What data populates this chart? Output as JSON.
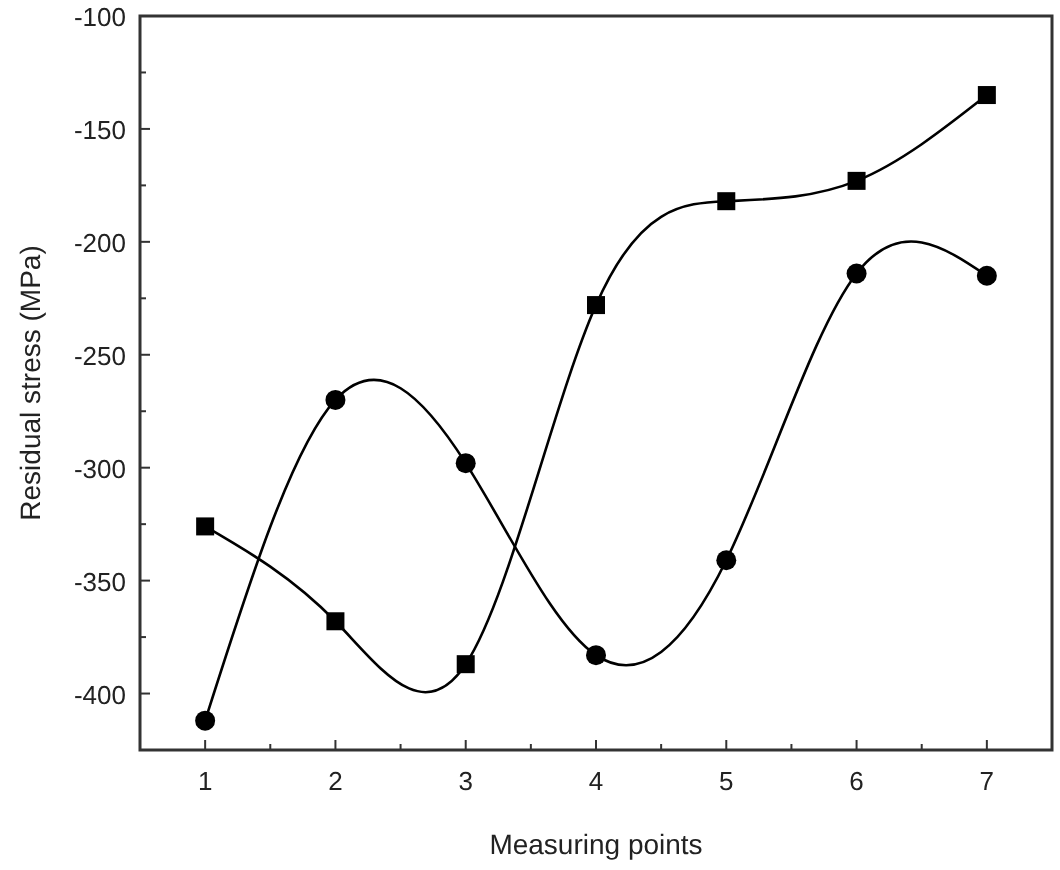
{
  "chart_data": {
    "type": "line",
    "xlabel": "Measuring points",
    "ylabel": "Residual stress (MPa)",
    "x": [
      1,
      2,
      3,
      4,
      5,
      6,
      7
    ],
    "series": [
      {
        "color": "#000000",
        "marker": "square",
        "values": [
          -326,
          -368,
          -387,
          -228,
          -182,
          -173,
          -135
        ]
      },
      {
        "color": "#000000",
        "marker": "circle",
        "values": [
          -412,
          -270,
          -298,
          -383,
          -341,
          -214,
          -215
        ]
      }
    ],
    "xlim": [
      0.5,
      7.5
    ],
    "xticks": [
      1,
      {
        "value": 1.5,
        "label": null
      },
      2,
      {
        "value": 2.5,
        "label": null
      },
      3,
      {
        "value": 3.5,
        "label": null
      },
      4,
      {
        "value": 4.5,
        "label": null
      },
      5,
      {
        "value": 5.5,
        "label": null
      },
      6,
      {
        "value": 6.5,
        "label": null
      },
      7
    ],
    "ylim": [
      -425,
      -100
    ],
    "yticks": [
      -100,
      {
        "value": -125,
        "label": null
      },
      -150,
      {
        "value": -175,
        "label": null
      },
      -200,
      {
        "value": -225,
        "label": null
      },
      -250,
      {
        "value": -275,
        "label": null
      },
      -300,
      {
        "value": -325,
        "label": null
      },
      -350,
      {
        "value": -375,
        "label": null
      },
      -400
    ],
    "line_style": "solid"
  }
}
